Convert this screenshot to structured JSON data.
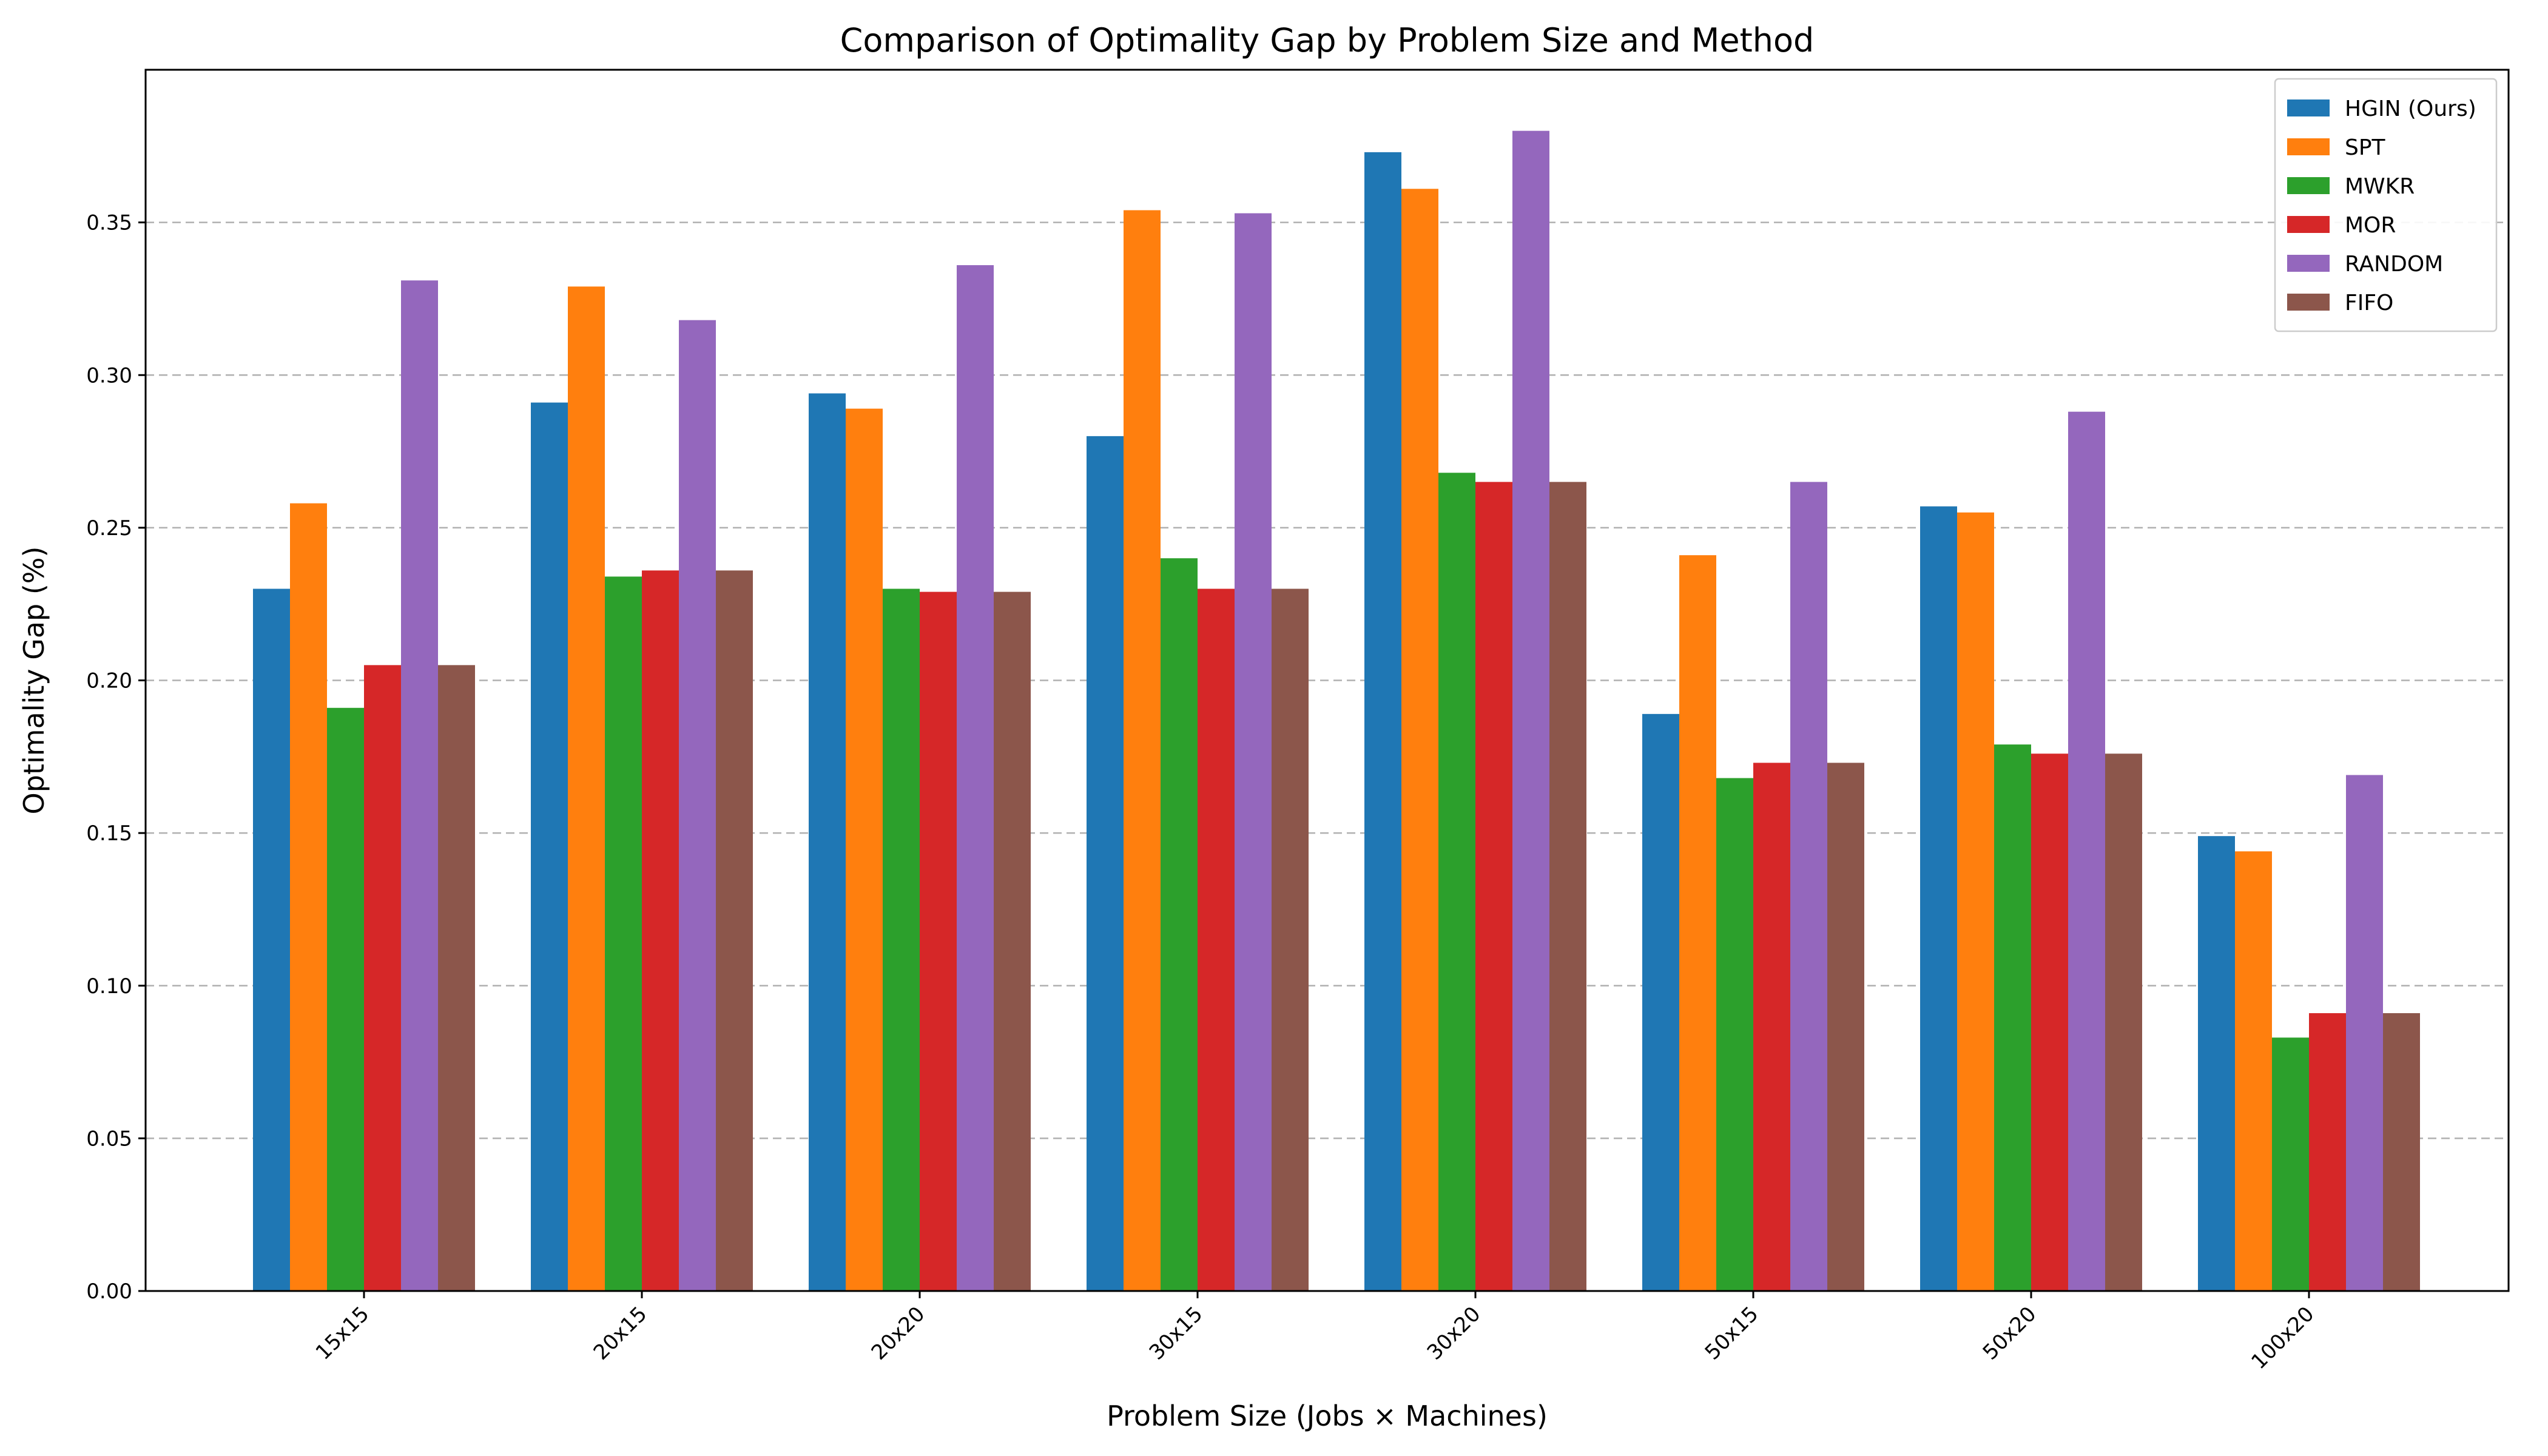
{
  "chart_data": {
    "type": "bar",
    "title": "Comparison of Optimality Gap by Problem Size and Method",
    "xlabel": "Problem Size (Jobs × Machines)",
    "ylabel": "Optimality Gap (%)",
    "categories": [
      "15x15",
      "20x15",
      "20x20",
      "30x15",
      "30x20",
      "50x15",
      "50x20",
      "100x20"
    ],
    "ylim": [
      0,
      0.4
    ],
    "yticks": [
      "0.00",
      "0.05",
      "0.10",
      "0.15",
      "0.20",
      "0.25",
      "0.30",
      "0.35"
    ],
    "grid": "y-dashed",
    "legend_position": "top-right",
    "series": [
      {
        "name": "HGIN (Ours)",
        "color": "#1f77b4",
        "values": [
          0.23,
          0.291,
          0.294,
          0.28,
          0.373,
          0.189,
          0.257,
          0.149
        ]
      },
      {
        "name": "SPT",
        "color": "#ff7f0e",
        "values": [
          0.258,
          0.329,
          0.289,
          0.354,
          0.361,
          0.241,
          0.255,
          0.144
        ]
      },
      {
        "name": "MWKR",
        "color": "#2ca02c",
        "values": [
          0.191,
          0.234,
          0.23,
          0.24,
          0.268,
          0.168,
          0.179,
          0.083
        ]
      },
      {
        "name": "MOR",
        "color": "#d62728",
        "values": [
          0.205,
          0.236,
          0.229,
          0.23,
          0.265,
          0.173,
          0.176,
          0.091
        ]
      },
      {
        "name": "RANDOM",
        "color": "#9467bd",
        "values": [
          0.331,
          0.318,
          0.336,
          0.353,
          0.38,
          0.265,
          0.288,
          0.169
        ]
      },
      {
        "name": "FIFO",
        "color": "#8c564b",
        "values": [
          0.205,
          0.236,
          0.229,
          0.23,
          0.265,
          0.173,
          0.176,
          0.091
        ]
      }
    ]
  }
}
